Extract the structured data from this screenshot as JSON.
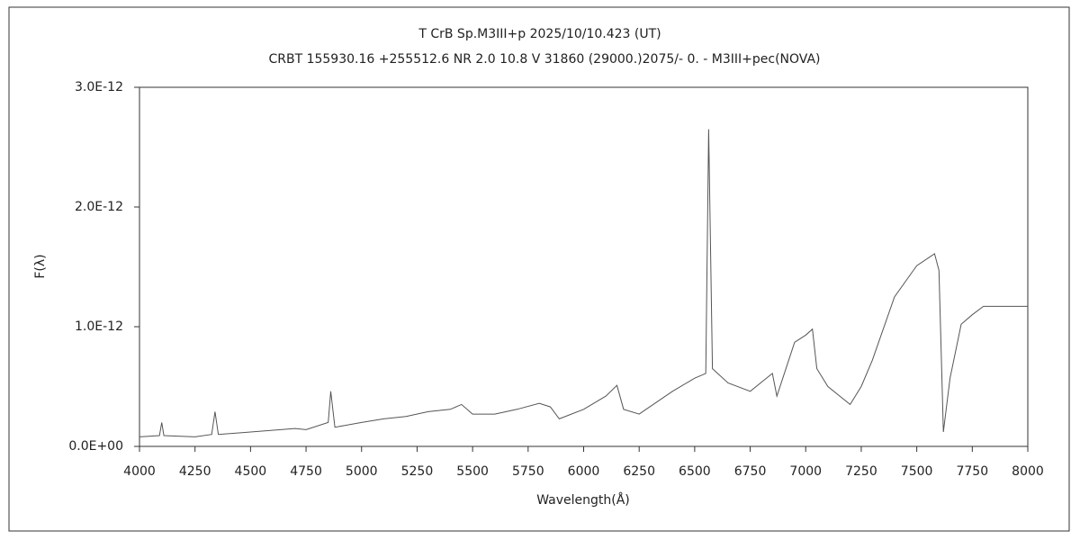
{
  "chart_data": {
    "type": "line",
    "title": "T CrB    Sp.M3III+p    2025/10/10.423 (UT)",
    "subtitle": "CRBT 155930.16 +255512.6 NR 2.0 10.8 V 31860 (29000.)2075/-  0. - M3III+pec(NOVA)",
    "x_label": "Wavelength(Å)",
    "y_label": "F(λ)",
    "xlim": [
      4000,
      8000
    ],
    "xticks": [
      4000,
      4250,
      4500,
      4750,
      5000,
      5250,
      5500,
      5750,
      6000,
      6250,
      6500,
      6750,
      7000,
      7250,
      7500,
      7750,
      8000
    ],
    "ylim": [
      0,
      3e-12
    ],
    "yticks": [
      {
        "value": 0,
        "label": "0.0E+00"
      },
      {
        "value": 1e-12,
        "label": "1.0E-12"
      },
      {
        "value": 2e-12,
        "label": "2.0E-12"
      },
      {
        "value": 3e-12,
        "label": "3.0E-12"
      }
    ],
    "x": [
      4000,
      4090,
      4100,
      4110,
      4250,
      4325,
      4340,
      4355,
      4500,
      4700,
      4750,
      4850,
      4861,
      4880,
      5000,
      5100,
      5200,
      5300,
      5400,
      5450,
      5500,
      5600,
      5700,
      5800,
      5850,
      5890,
      6000,
      6100,
      6150,
      6180,
      6250,
      6400,
      6500,
      6550,
      6563,
      6580,
      6650,
      6750,
      6850,
      6870,
      6950,
      7000,
      7030,
      7050,
      7100,
      7200,
      7250,
      7300,
      7400,
      7500,
      7580,
      7600,
      7620,
      7650,
      7700,
      7750,
      7800,
      7900,
      8000
    ],
    "series": [
      {
        "name": "T CrB",
        "color": "#555555",
        "values": [
          8e-14,
          9e-14,
          2e-13,
          9e-14,
          8e-14,
          1e-13,
          2.9e-13,
          1e-13,
          1.2e-13,
          1.5e-13,
          1.4e-13,
          2e-13,
          4.6e-13,
          1.6e-13,
          2e-13,
          2.3e-13,
          2.5e-13,
          2.9e-13,
          3.1e-13,
          3.5e-13,
          2.7e-13,
          2.7e-13,
          3.1e-13,
          3.6e-13,
          3.3e-13,
          2.3e-13,
          3.1e-13,
          4.2e-13,
          5.1e-13,
          3.1e-13,
          2.7e-13,
          4.6e-13,
          5.7e-13,
          6.1e-13,
          2.65e-12,
          6.5e-13,
          5.3e-13,
          4.6e-13,
          6.1e-13,
          4.2e-13,
          8.7e-13,
          9.3e-13,
          9.8e-13,
          6.5e-13,
          5e-13,
          3.5e-13,
          5e-13,
          7.2e-13,
          1.25e-12,
          1.51e-12,
          1.61e-12,
          1.47e-12,
          1.2e-13,
          5.7e-13,
          1.02e-12,
          1.1e-12,
          1.17e-12,
          1.17e-12,
          1.17e-12
        ]
      }
    ]
  }
}
